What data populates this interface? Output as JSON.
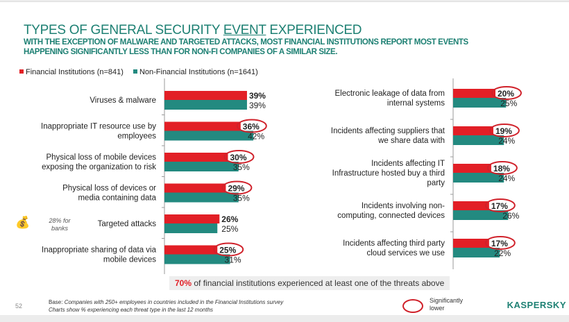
{
  "header": {
    "title_pre": "TYPES OF GENERAL SECURITY ",
    "title_underlined": "EVENT",
    "title_post": " EXPERIENCED",
    "subtitle_line1": "WITH THE EXCEPTION OF MALWARE AND TARGETED ATTACKS, MOST FINANCIAL INSTITUTIONS REPORT MOST EVENTS",
    "subtitle_line2": "HAPPENING SIGNIFICANTLY LESS THAN FOR NON-FI COMPANIES OF A SIMILAR SIZE."
  },
  "chart_data": {
    "type": "bar",
    "orientation": "horizontal",
    "legend_position": "top-left",
    "grid": false,
    "xlim": [
      0,
      45
    ],
    "colors": {
      "Financial Institutions (n=841)": "#e21f26",
      "Non-Financial Institutions (n=1641)": "#238a80",
      "significance_ring": "#d0212a"
    },
    "series_names": [
      "Financial Institutions (n=841)",
      "Non-Financial Institutions (n=1641)"
    ],
    "panels": [
      {
        "categories": [
          "Viruses & malware",
          "Inappropriate IT resource use by employees",
          "Physical loss of mobile devices exposing the organization to risk",
          "Physical loss of devices or media containing data",
          "Targeted attacks",
          "Inappropriate sharing of data via mobile devices"
        ],
        "label_lines": [
          [
            "Viruses & malware"
          ],
          [
            "Inappropriate IT resource use by",
            "employees"
          ],
          [
            "Physical loss of mobile devices",
            "exposing the organization to risk"
          ],
          [
            "Physical loss of devices or",
            "media containing data"
          ],
          [
            "Targeted attacks"
          ],
          [
            "Inappropriate sharing of data via",
            "mobile devices"
          ]
        ],
        "fi": [
          39,
          36,
          30,
          29,
          26,
          25
        ],
        "nonfi": [
          39,
          42,
          35,
          35,
          25,
          31
        ],
        "significantly_lower": [
          false,
          true,
          true,
          true,
          false,
          true
        ]
      },
      {
        "categories": [
          "Electronic leakage of data from internal systems",
          "Incidents affecting suppliers that we share data with",
          "Incidents affecting IT Infrastructure hosted buy a third party",
          "Incidents involving non-computing, connected devices",
          "Incidents affecting third party cloud services we use"
        ],
        "label_lines": [
          [
            "Electronic leakage of data from",
            "internal systems"
          ],
          [
            "Incidents affecting suppliers that",
            "we share data with"
          ],
          [
            "Incidents affecting IT",
            "Infrastructure hosted buy a third",
            "party"
          ],
          [
            "Incidents involving non-",
            "computing, connected devices"
          ],
          [
            "Incidents affecting third party",
            "cloud services we use"
          ]
        ],
        "fi": [
          20,
          19,
          18,
          17,
          17
        ],
        "nonfi": [
          25,
          24,
          24,
          26,
          22
        ],
        "significantly_lower": [
          true,
          true,
          true,
          true,
          true
        ]
      }
    ],
    "annotations": {
      "banks_note": "28% for banks",
      "bag_icon": "money-bag-icon"
    }
  },
  "callout": {
    "highlight": "70%",
    "text": " of financial institutions experienced at least one of the threats above"
  },
  "footer": {
    "base_label": "Base:",
    "base_text": " Companies with 250+ employees in countries included in the Financial Institutions survey",
    "line2": "Charts show % experiencing each threat type in the last 12 months",
    "page_number": "52",
    "sig_line1": "Significantly",
    "sig_line2": "lower",
    "logo": "KASPERSKY"
  }
}
